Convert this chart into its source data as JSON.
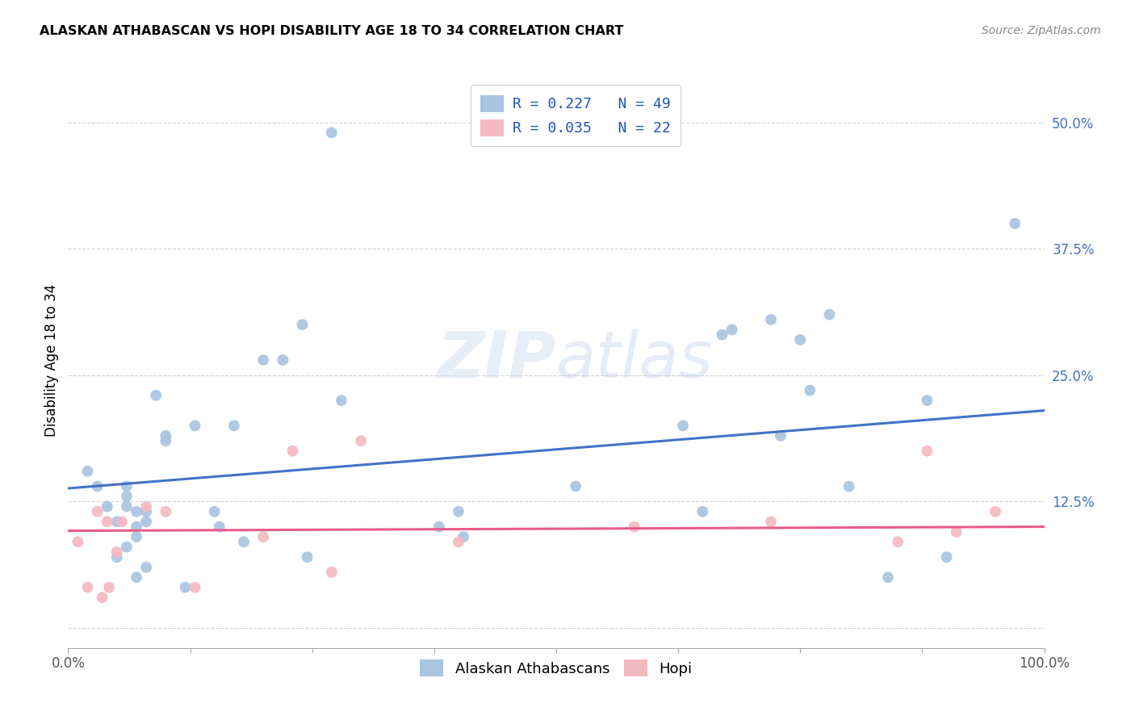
{
  "title": "ALASKAN ATHABASCAN VS HOPI DISABILITY AGE 18 TO 34 CORRELATION CHART",
  "source": "Source: ZipAtlas.com",
  "ylabel": "Disability Age 18 to 34",
  "xlim": [
    0.0,
    1.0
  ],
  "ylim": [
    -0.02,
    0.55
  ],
  "x_ticks": [
    0.0,
    0.125,
    0.25,
    0.375,
    0.5,
    0.625,
    0.75,
    0.875,
    1.0
  ],
  "x_tick_labels": [
    "0.0%",
    "",
    "",
    "",
    "",
    "",
    "",
    "",
    "100.0%"
  ],
  "y_ticks": [
    0.0,
    0.125,
    0.25,
    0.375,
    0.5
  ],
  "y_tick_labels": [
    "",
    "12.5%",
    "25.0%",
    "37.5%",
    "50.0%"
  ],
  "legend_blue_label": "R = 0.227   N = 49",
  "legend_pink_label": "R = 0.035   N = 22",
  "blue_color": "#a8c4e0",
  "pink_color": "#f4b8c1",
  "blue_line_color": "#4472C4",
  "pink_line_color": "#E85C8A",
  "watermark_zip": "ZIP",
  "watermark_atlas": "atlas",
  "blue_scatter_x": [
    0.02,
    0.03,
    0.04,
    0.05,
    0.05,
    0.06,
    0.06,
    0.06,
    0.06,
    0.07,
    0.07,
    0.07,
    0.07,
    0.08,
    0.08,
    0.08,
    0.09,
    0.1,
    0.1,
    0.12,
    0.13,
    0.15,
    0.155,
    0.17,
    0.18,
    0.2,
    0.22,
    0.24,
    0.245,
    0.27,
    0.28,
    0.38,
    0.4,
    0.405,
    0.52,
    0.63,
    0.65,
    0.67,
    0.68,
    0.72,
    0.73,
    0.75,
    0.76,
    0.78,
    0.8,
    0.84,
    0.88,
    0.9,
    0.97
  ],
  "blue_scatter_y": [
    0.155,
    0.14,
    0.12,
    0.07,
    0.105,
    0.12,
    0.13,
    0.14,
    0.08,
    0.05,
    0.1,
    0.115,
    0.09,
    0.06,
    0.105,
    0.115,
    0.23,
    0.19,
    0.185,
    0.04,
    0.2,
    0.115,
    0.1,
    0.2,
    0.085,
    0.265,
    0.265,
    0.3,
    0.07,
    0.49,
    0.225,
    0.1,
    0.115,
    0.09,
    0.14,
    0.2,
    0.115,
    0.29,
    0.295,
    0.305,
    0.19,
    0.285,
    0.235,
    0.31,
    0.14,
    0.05,
    0.225,
    0.07,
    0.4
  ],
  "pink_scatter_x": [
    0.01,
    0.02,
    0.03,
    0.035,
    0.04,
    0.042,
    0.05,
    0.055,
    0.08,
    0.1,
    0.13,
    0.2,
    0.23,
    0.27,
    0.3,
    0.4,
    0.58,
    0.72,
    0.85,
    0.88,
    0.91,
    0.95
  ],
  "pink_scatter_y": [
    0.085,
    0.04,
    0.115,
    0.03,
    0.105,
    0.04,
    0.075,
    0.105,
    0.12,
    0.115,
    0.04,
    0.09,
    0.175,
    0.055,
    0.185,
    0.085,
    0.1,
    0.105,
    0.085,
    0.175,
    0.095,
    0.115
  ],
  "blue_trend_x": [
    0.0,
    1.0
  ],
  "blue_trend_y": [
    0.138,
    0.215
  ],
  "pink_trend_x": [
    0.0,
    1.0
  ],
  "pink_trend_y": [
    0.096,
    0.1
  ]
}
